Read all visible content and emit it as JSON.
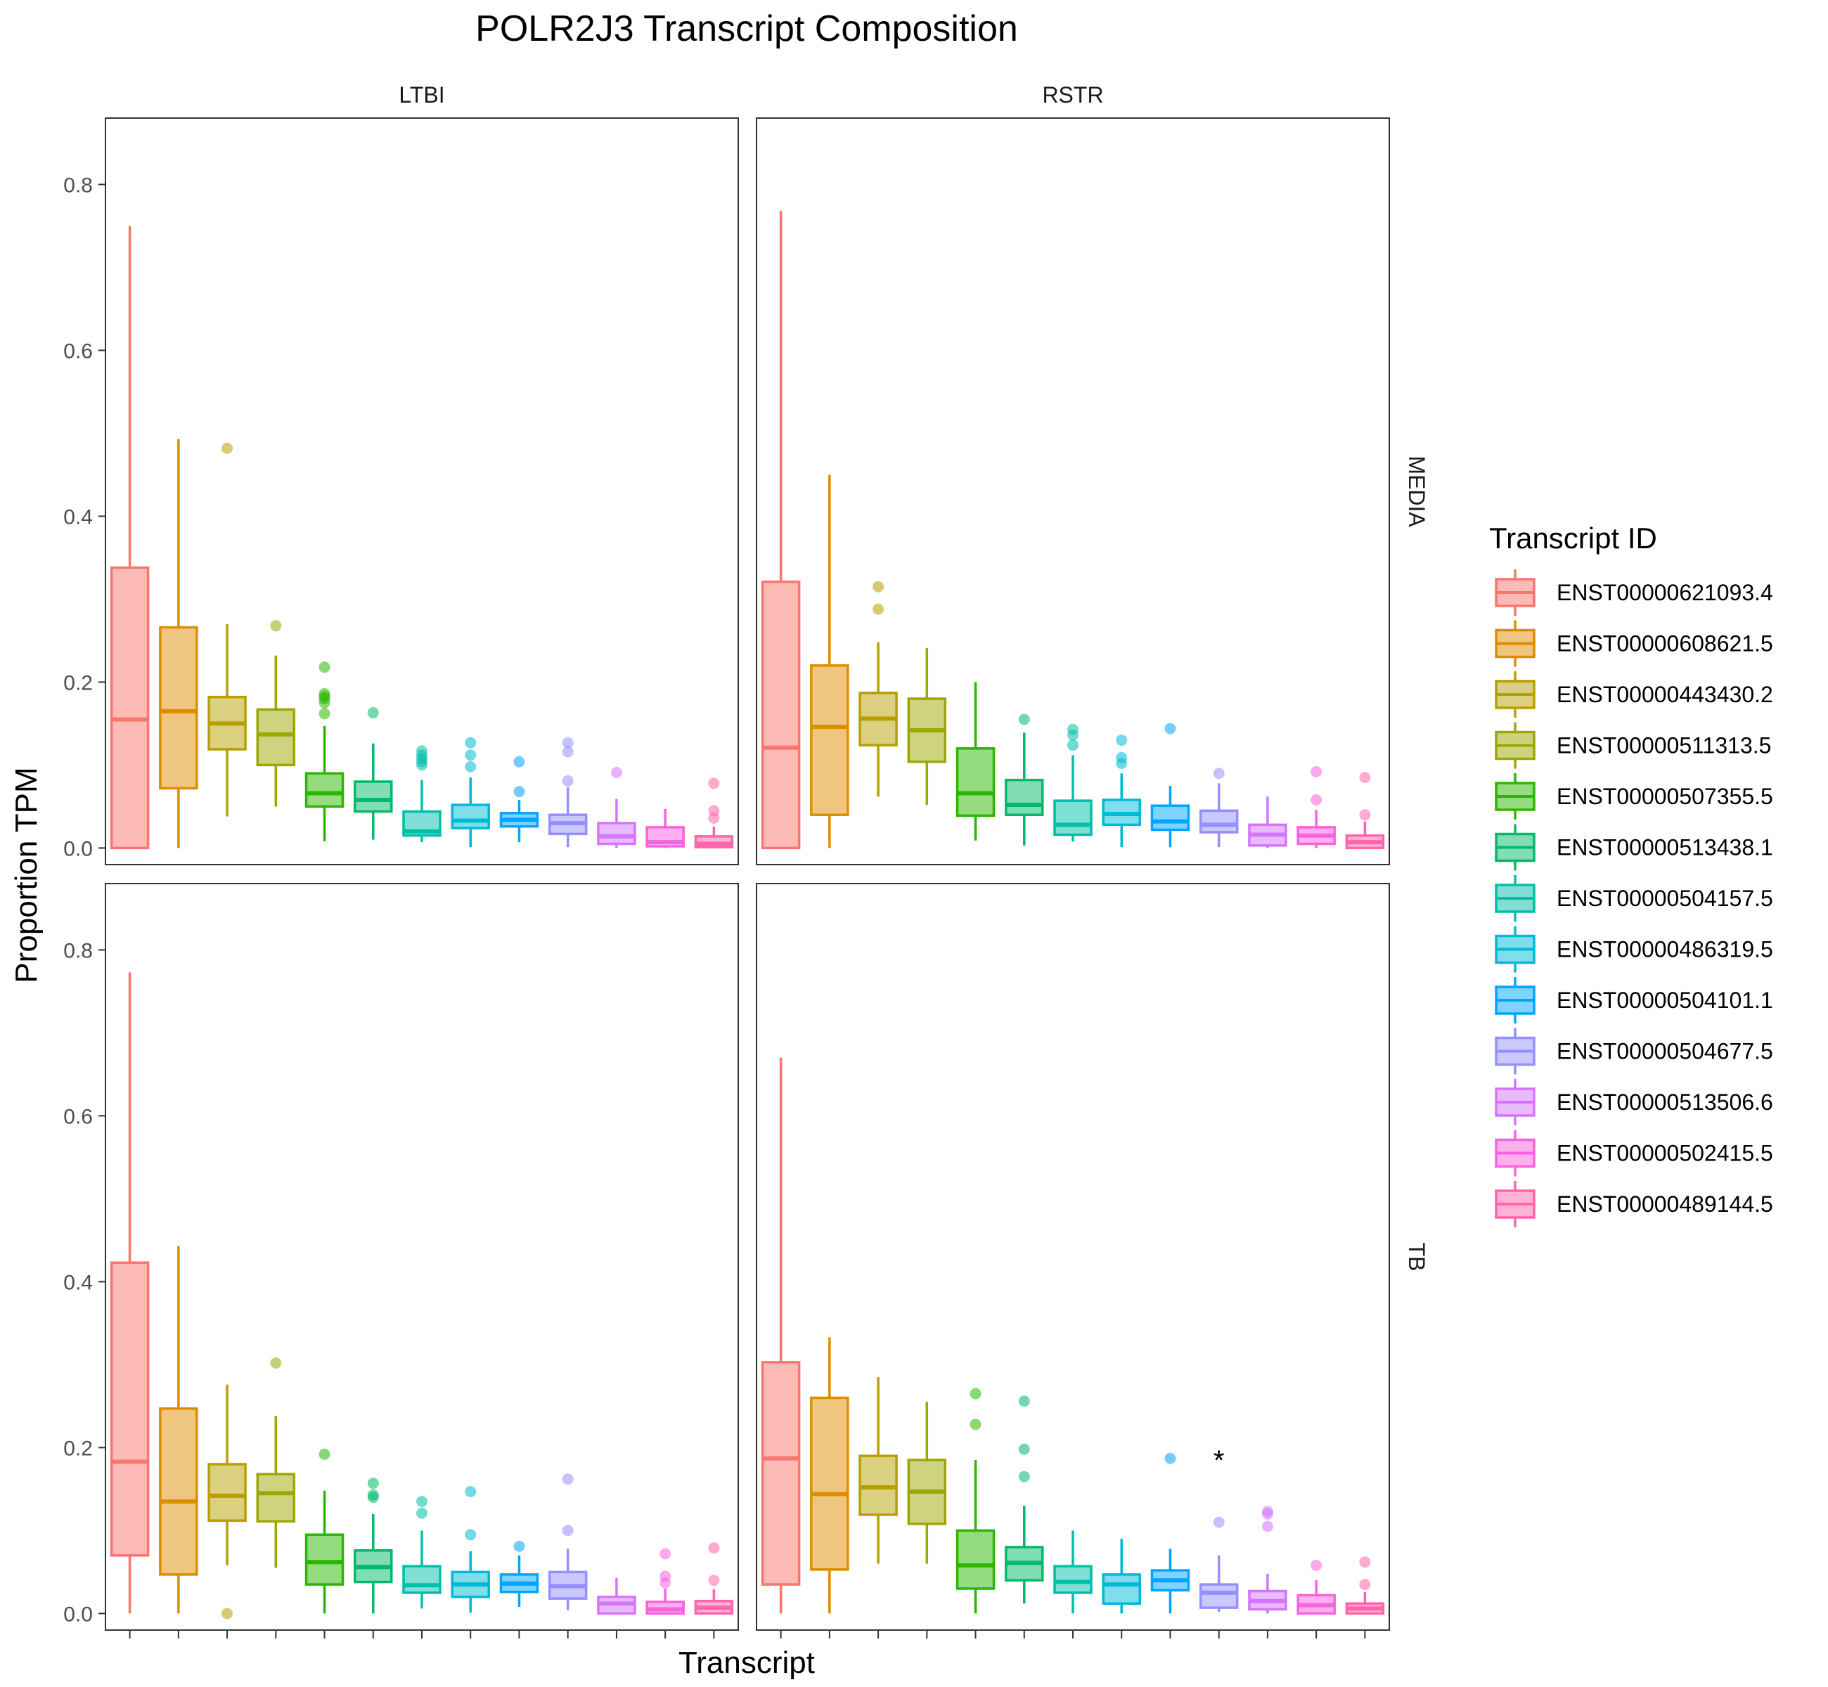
{
  "chart_data": {
    "type": "box",
    "title": "POLR2J3 Transcript Composition",
    "xlabel": "Transcript",
    "ylabel": "Proportion TPM",
    "ylim": [
      -0.02,
      0.88
    ],
    "y_ticks": [
      "0.0",
      "0.2",
      "0.4",
      "0.6",
      "0.8"
    ],
    "y_tick_values": [
      0,
      0.2,
      0.4,
      0.6,
      0.8
    ],
    "grid": false,
    "legend_title": "Transcript ID",
    "legend_position": "right",
    "transcripts": [
      {
        "id": "ENST00000621093.4",
        "color": "#F8766D"
      },
      {
        "id": "ENST00000608621.5",
        "color": "#DE8C00"
      },
      {
        "id": "ENST00000443430.2",
        "color": "#B79F00"
      },
      {
        "id": "ENST00000511313.5",
        "color": "#9CA700"
      },
      {
        "id": "ENST00000507355.5",
        "color": "#2BB600"
      },
      {
        "id": "ENST00000513438.1",
        "color": "#00BA6A"
      },
      {
        "id": "ENST00000504157.5",
        "color": "#00BFA9"
      },
      {
        "id": "ENST00000486319.5",
        "color": "#00BAD7"
      },
      {
        "id": "ENST00000504101.1",
        "color": "#00A5FF"
      },
      {
        "id": "ENST00000504677.5",
        "color": "#9590FF"
      },
      {
        "id": "ENST00000513506.6",
        "color": "#D575FE"
      },
      {
        "id": "ENST00000502415.5",
        "color": "#F962DD"
      },
      {
        "id": "ENST00000489144.5",
        "color": "#FF65AC"
      }
    ],
    "column_facets": [
      "LTBI",
      "RSTR"
    ],
    "row_facets": [
      "MEDIA",
      "TB"
    ],
    "panels": [
      {
        "col": "LTBI",
        "row": "MEDIA",
        "boxes": [
          {
            "min": 0.0,
            "q1": 0.0,
            "median": 0.155,
            "q3": 0.338,
            "max": 0.75,
            "outliers": []
          },
          {
            "min": 0.0,
            "q1": 0.072,
            "median": 0.165,
            "q3": 0.266,
            "max": 0.493,
            "outliers": []
          },
          {
            "min": 0.038,
            "q1": 0.119,
            "median": 0.15,
            "q3": 0.182,
            "max": 0.27,
            "outliers": [
              0.482
            ]
          },
          {
            "min": 0.05,
            "q1": 0.1,
            "median": 0.137,
            "q3": 0.167,
            "max": 0.232,
            "outliers": [
              0.268
            ]
          },
          {
            "min": 0.008,
            "q1": 0.05,
            "median": 0.066,
            "q3": 0.09,
            "max": 0.147,
            "outliers": [
              0.162,
              0.175,
              0.18,
              0.183,
              0.186,
              0.218
            ]
          },
          {
            "min": 0.01,
            "q1": 0.044,
            "median": 0.058,
            "q3": 0.08,
            "max": 0.126,
            "outliers": [
              0.163
            ]
          },
          {
            "min": 0.007,
            "q1": 0.015,
            "median": 0.02,
            "q3": 0.044,
            "max": 0.082,
            "outliers": [
              0.1,
              0.104,
              0.108,
              0.112,
              0.117
            ]
          },
          {
            "min": 0.001,
            "q1": 0.024,
            "median": 0.033,
            "q3": 0.052,
            "max": 0.085,
            "outliers": [
              0.098,
              0.112,
              0.127
            ]
          },
          {
            "min": 0.007,
            "q1": 0.026,
            "median": 0.034,
            "q3": 0.042,
            "max": 0.058,
            "outliers": [
              0.068,
              0.104
            ]
          },
          {
            "min": 0.001,
            "q1": 0.017,
            "median": 0.03,
            "q3": 0.04,
            "max": 0.073,
            "outliers": [
              0.081,
              0.116,
              0.127
            ]
          },
          {
            "min": 0.0,
            "q1": 0.005,
            "median": 0.014,
            "q3": 0.03,
            "max": 0.059,
            "outliers": [
              0.091
            ]
          },
          {
            "min": 0.0,
            "q1": 0.002,
            "median": 0.007,
            "q3": 0.025,
            "max": 0.047,
            "outliers": []
          },
          {
            "min": 0.0,
            "q1": 0.001,
            "median": 0.005,
            "q3": 0.014,
            "max": 0.026,
            "outliers": [
              0.036,
              0.045,
              0.078
            ]
          }
        ]
      },
      {
        "col": "RSTR",
        "row": "MEDIA",
        "boxes": [
          {
            "min": 0.0,
            "q1": 0.0,
            "median": 0.121,
            "q3": 0.321,
            "max": 0.768,
            "outliers": []
          },
          {
            "min": 0.0,
            "q1": 0.04,
            "median": 0.146,
            "q3": 0.22,
            "max": 0.45,
            "outliers": []
          },
          {
            "min": 0.062,
            "q1": 0.124,
            "median": 0.156,
            "q3": 0.187,
            "max": 0.248,
            "outliers": [
              0.288,
              0.315
            ]
          },
          {
            "min": 0.052,
            "q1": 0.104,
            "median": 0.142,
            "q3": 0.18,
            "max": 0.241,
            "outliers": []
          },
          {
            "min": 0.009,
            "q1": 0.039,
            "median": 0.066,
            "q3": 0.12,
            "max": 0.2,
            "outliers": []
          },
          {
            "min": 0.003,
            "q1": 0.04,
            "median": 0.052,
            "q3": 0.082,
            "max": 0.139,
            "outliers": [
              0.155
            ]
          },
          {
            "min": 0.008,
            "q1": 0.016,
            "median": 0.028,
            "q3": 0.057,
            "max": 0.112,
            "outliers": [
              0.124,
              0.136,
              0.143
            ]
          },
          {
            "min": 0.001,
            "q1": 0.028,
            "median": 0.041,
            "q3": 0.058,
            "max": 0.09,
            "outliers": [
              0.102,
              0.109,
              0.13
            ]
          },
          {
            "min": 0.001,
            "q1": 0.022,
            "median": 0.032,
            "q3": 0.051,
            "max": 0.075,
            "outliers": [
              0.144
            ]
          },
          {
            "min": 0.001,
            "q1": 0.019,
            "median": 0.028,
            "q3": 0.045,
            "max": 0.078,
            "outliers": [
              0.09
            ]
          },
          {
            "min": 0.0,
            "q1": 0.003,
            "median": 0.016,
            "q3": 0.028,
            "max": 0.062,
            "outliers": []
          },
          {
            "min": 0.0,
            "q1": 0.005,
            "median": 0.015,
            "q3": 0.025,
            "max": 0.046,
            "outliers": [
              0.058,
              0.092
            ]
          },
          {
            "min": 0.0,
            "q1": 0.0,
            "median": 0.007,
            "q3": 0.015,
            "max": 0.032,
            "outliers": [
              0.04,
              0.085
            ]
          }
        ]
      },
      {
        "col": "LTBI",
        "row": "TB",
        "boxes": [
          {
            "min": 0.0,
            "q1": 0.07,
            "median": 0.183,
            "q3": 0.423,
            "max": 0.773,
            "outliers": []
          },
          {
            "min": 0.0,
            "q1": 0.047,
            "median": 0.135,
            "q3": 0.247,
            "max": 0.443,
            "outliers": []
          },
          {
            "min": 0.058,
            "q1": 0.112,
            "median": 0.142,
            "q3": 0.18,
            "max": 0.276,
            "outliers": [
              0.0
            ]
          },
          {
            "min": 0.055,
            "q1": 0.111,
            "median": 0.145,
            "q3": 0.168,
            "max": 0.238,
            "outliers": [
              0.302
            ]
          },
          {
            "min": 0.0,
            "q1": 0.035,
            "median": 0.062,
            "q3": 0.095,
            "max": 0.148,
            "outliers": [
              0.192
            ]
          },
          {
            "min": 0.0,
            "q1": 0.038,
            "median": 0.056,
            "q3": 0.076,
            "max": 0.12,
            "outliers": [
              0.14,
              0.143,
              0.157
            ]
          },
          {
            "min": 0.006,
            "q1": 0.025,
            "median": 0.034,
            "q3": 0.057,
            "max": 0.1,
            "outliers": [
              0.121,
              0.135
            ]
          },
          {
            "min": 0.001,
            "q1": 0.02,
            "median": 0.035,
            "q3": 0.05,
            "max": 0.075,
            "outliers": [
              0.095,
              0.147
            ]
          },
          {
            "min": 0.008,
            "q1": 0.026,
            "median": 0.036,
            "q3": 0.047,
            "max": 0.07,
            "outliers": [
              0.081
            ]
          },
          {
            "min": 0.004,
            "q1": 0.018,
            "median": 0.033,
            "q3": 0.05,
            "max": 0.078,
            "outliers": [
              0.1,
              0.162
            ]
          },
          {
            "min": 0.0,
            "q1": 0.0,
            "median": 0.012,
            "q3": 0.02,
            "max": 0.043,
            "outliers": []
          },
          {
            "min": 0.0,
            "q1": 0.0,
            "median": 0.005,
            "q3": 0.014,
            "max": 0.03,
            "outliers": [
              0.037,
              0.045,
              0.072
            ]
          },
          {
            "min": 0.0,
            "q1": 0.0,
            "median": 0.007,
            "q3": 0.015,
            "max": 0.029,
            "outliers": [
              0.04,
              0.079
            ]
          }
        ]
      },
      {
        "col": "RSTR",
        "row": "TB",
        "boxes": [
          {
            "min": 0.0,
            "q1": 0.035,
            "median": 0.187,
            "q3": 0.303,
            "max": 0.67,
            "outliers": []
          },
          {
            "min": 0.0,
            "q1": 0.053,
            "median": 0.144,
            "q3": 0.26,
            "max": 0.333,
            "outliers": []
          },
          {
            "min": 0.06,
            "q1": 0.119,
            "median": 0.152,
            "q3": 0.19,
            "max": 0.285,
            "outliers": []
          },
          {
            "min": 0.06,
            "q1": 0.108,
            "median": 0.147,
            "q3": 0.185,
            "max": 0.255,
            "outliers": []
          },
          {
            "min": 0.0,
            "q1": 0.03,
            "median": 0.058,
            "q3": 0.1,
            "max": 0.185,
            "outliers": [
              0.228,
              0.265
            ]
          },
          {
            "min": 0.012,
            "q1": 0.04,
            "median": 0.061,
            "q3": 0.08,
            "max": 0.13,
            "outliers": [
              0.165,
              0.198,
              0.256
            ]
          },
          {
            "min": 0.0,
            "q1": 0.025,
            "median": 0.038,
            "q3": 0.057,
            "max": 0.1,
            "outliers": []
          },
          {
            "min": 0.0,
            "q1": 0.012,
            "median": 0.035,
            "q3": 0.047,
            "max": 0.09,
            "outliers": []
          },
          {
            "min": 0.0,
            "q1": 0.028,
            "median": 0.04,
            "q3": 0.052,
            "max": 0.078,
            "outliers": [
              0.187
            ]
          },
          {
            "min": 0.002,
            "q1": 0.007,
            "median": 0.025,
            "q3": 0.035,
            "max": 0.07,
            "outliers": [
              0.11
            ]
          },
          {
            "min": 0.0,
            "q1": 0.005,
            "median": 0.015,
            "q3": 0.027,
            "max": 0.048,
            "outliers": [
              0.105,
              0.12,
              0.123
            ]
          },
          {
            "min": 0.0,
            "q1": 0.0,
            "median": 0.01,
            "q3": 0.022,
            "max": 0.04,
            "outliers": [
              0.058
            ]
          },
          {
            "min": 0.0,
            "q1": 0.0,
            "median": 0.006,
            "q3": 0.012,
            "max": 0.026,
            "outliers": [
              0.035,
              0.062
            ]
          }
        ],
        "annotation": {
          "text": "*",
          "transcript_index": 9,
          "y": 0.185
        }
      }
    ]
  }
}
